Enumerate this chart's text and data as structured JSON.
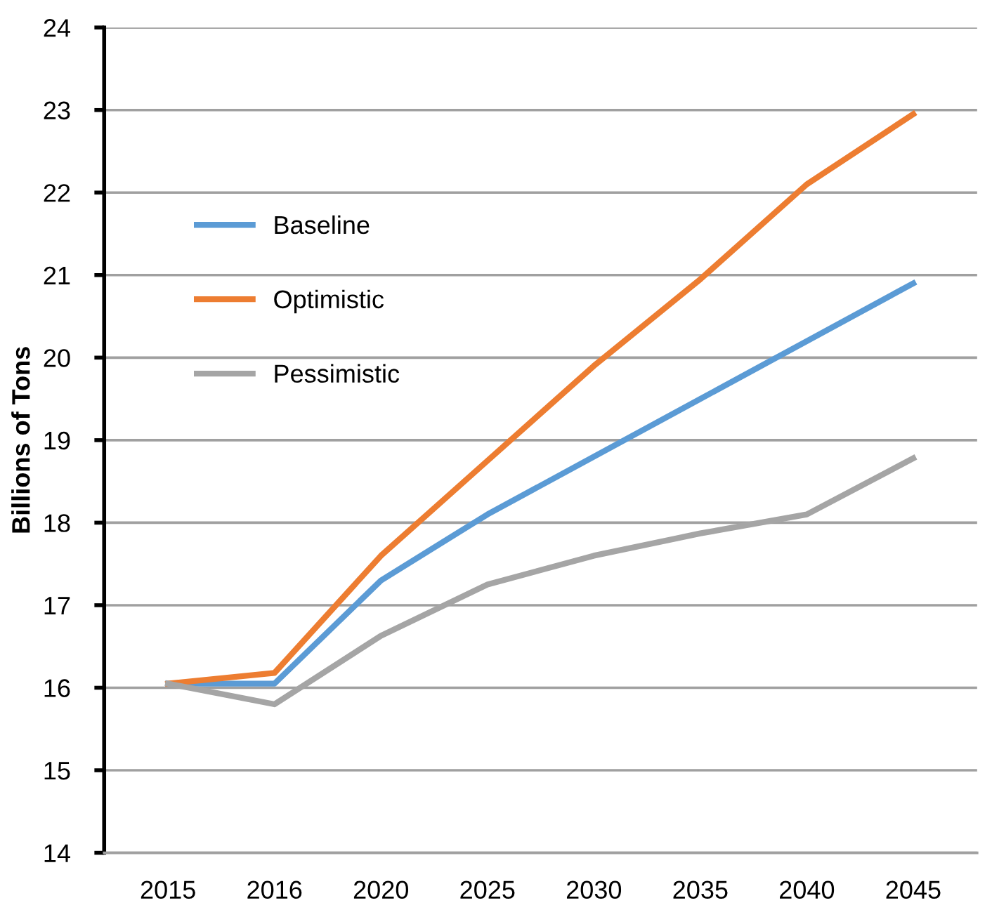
{
  "chart_data": {
    "type": "line",
    "ylabel": "Billions of Tons",
    "categories": [
      "2015",
      "2016",
      "2020",
      "2025",
      "2030",
      "2035",
      "2040",
      "2045"
    ],
    "series": [
      {
        "name": "Baseline",
        "color": "#5b9bd5",
        "values": [
          16.05,
          16.05,
          17.3,
          18.1,
          18.8,
          19.5,
          20.2,
          20.9
        ]
      },
      {
        "name": "Optimistic",
        "color": "#ed7d31",
        "values": [
          16.05,
          16.18,
          17.6,
          18.75,
          19.9,
          20.95,
          22.1,
          22.95
        ]
      },
      {
        "name": "Pessimistic",
        "color": "#a5a5a5",
        "values": [
          16.05,
          15.8,
          16.63,
          17.25,
          17.6,
          17.87,
          18.1,
          18.78
        ]
      }
    ],
    "ylim": [
      14,
      24
    ],
    "yticks": [
      14,
      15,
      16,
      17,
      18,
      19,
      20,
      21,
      22,
      23,
      24
    ],
    "grid": "y",
    "legend": "top left",
    "marker": "none",
    "line_style": "solid"
  }
}
